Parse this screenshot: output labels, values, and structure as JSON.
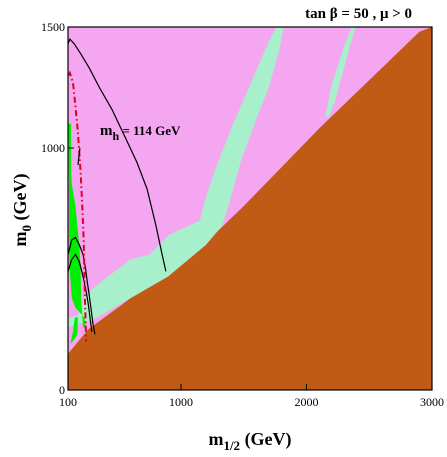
{
  "chart_data": {
    "type": "area",
    "title": "tan β = 50 ,  μ > 0",
    "xlabel_main": "m",
    "xlabel_sub": "1/2",
    "xlabel_unit": " (GeV)",
    "ylabel_main": "m",
    "ylabel_sub": "0",
    "ylabel_unit": " (GeV)",
    "xlim": [
      100,
      3000
    ],
    "ylim": [
      0,
      1500
    ],
    "xticks": [
      100,
      1000,
      2000,
      3000
    ],
    "yticks": [
      0,
      1000,
      1500
    ],
    "annotation": {
      "main": "m",
      "sub": "h",
      "rest": " = 114 GeV"
    },
    "grid": false,
    "regions": [
      {
        "color": "#f4a6f0",
        "points": [
          [
            100,
            0
          ],
          [
            3000,
            0
          ],
          [
            3000,
            1500
          ],
          [
            100,
            1500
          ]
        ]
      },
      {
        "color": "#c15a14",
        "points": [
          [
            100,
            150
          ],
          [
            260,
            250
          ],
          [
            600,
            380
          ],
          [
            900,
            470
          ],
          [
            1200,
            610
          ],
          [
            1500,
            760
          ],
          [
            1800,
            920
          ],
          [
            2100,
            1080
          ],
          [
            2400,
            1230
          ],
          [
            2700,
            1380
          ],
          [
            2900,
            1480
          ],
          [
            3000,
            1500
          ],
          [
            3000,
            0
          ],
          [
            100,
            0
          ]
        ]
      },
      {
        "color": "#a8f0cc",
        "points": [
          [
            110,
            300
          ],
          [
            135,
            300
          ],
          [
            180,
            310
          ],
          [
            230,
            380
          ],
          [
            300,
            420
          ],
          [
            420,
            470
          ],
          [
            500,
            500
          ],
          [
            600,
            540
          ],
          [
            750,
            560
          ],
          [
            900,
            640
          ],
          [
            1150,
            700
          ],
          [
            1200,
            800
          ],
          [
            1280,
            920
          ],
          [
            1400,
            1080
          ],
          [
            1500,
            1200
          ],
          [
            1600,
            1320
          ],
          [
            1700,
            1440
          ],
          [
            1760,
            1500
          ],
          [
            1820,
            1500
          ],
          [
            1780,
            1400
          ],
          [
            1700,
            1250
          ],
          [
            1600,
            1120
          ],
          [
            1480,
            950
          ],
          [
            1400,
            800
          ],
          [
            1330,
            680
          ],
          [
            1200,
            600
          ],
          [
            900,
            470
          ],
          [
            600,
            380
          ],
          [
            300,
            290
          ],
          [
            150,
            270
          ],
          [
            100,
            260
          ],
          [
            100,
            290
          ]
        ]
      },
      {
        "color": "#a8f0cc",
        "points": [
          [
            2150,
            1130
          ],
          [
            2200,
            1260
          ],
          [
            2300,
            1420
          ],
          [
            2360,
            1500
          ],
          [
            2390,
            1500
          ],
          [
            2330,
            1390
          ],
          [
            2230,
            1200
          ],
          [
            2180,
            1130
          ]
        ]
      },
      {
        "color": "#00ee00",
        "points": [
          [
            103,
            1100
          ],
          [
            125,
            1100
          ],
          [
            126,
            900
          ],
          [
            130,
            850
          ],
          [
            160,
            760
          ],
          [
            180,
            650
          ],
          [
            190,
            600
          ],
          [
            200,
            500
          ],
          [
            205,
            370
          ],
          [
            220,
            260
          ],
          [
            245,
            255
          ],
          [
            230,
            300
          ],
          [
            160,
            340
          ],
          [
            130,
            380
          ],
          [
            110,
            520
          ],
          [
            108,
            800
          ],
          [
            105,
            1000
          ]
        ]
      },
      {
        "color": "#00ee00",
        "points": [
          [
            120,
            190
          ],
          [
            150,
            210
          ],
          [
            175,
            230
          ],
          [
            178,
            300
          ],
          [
            155,
            300
          ],
          [
            140,
            240
          ],
          [
            125,
            205
          ]
        ]
      }
    ],
    "contours": [
      {
        "color": "#000000",
        "dash": "",
        "points": [
          [
            100,
            1430
          ],
          [
            115,
            1450
          ],
          [
            150,
            1430
          ],
          [
            200,
            1390
          ],
          [
            270,
            1330
          ],
          [
            350,
            1250
          ],
          [
            450,
            1160
          ],
          [
            550,
            1050
          ],
          [
            650,
            940
          ],
          [
            730,
            830
          ],
          [
            800,
            680
          ],
          [
            850,
            560
          ],
          [
            880,
            490
          ]
        ]
      },
      {
        "color": "#000000",
        "dash": "",
        "points": [
          [
            100,
            560
          ],
          [
            130,
            620
          ],
          [
            160,
            630
          ],
          [
            190,
            600
          ],
          [
            220,
            560
          ],
          [
            240,
            500
          ],
          [
            255,
            440
          ],
          [
            270,
            390
          ],
          [
            285,
            330
          ],
          [
            300,
            270
          ],
          [
            315,
            230
          ]
        ]
      },
      {
        "color": "#000000",
        "dash": "",
        "points": [
          [
            100,
            490
          ],
          [
            130,
            540
          ],
          [
            160,
            560
          ],
          [
            190,
            530
          ],
          [
            215,
            480
          ],
          [
            240,
            420
          ],
          [
            260,
            360
          ],
          [
            275,
            300
          ],
          [
            290,
            240
          ]
        ]
      },
      {
        "color": "#e00020",
        "dash": "6,3,1.5,3",
        "points": [
          [
            105,
            1300
          ],
          [
            115,
            1310
          ],
          [
            140,
            1270
          ],
          [
            160,
            1170
          ],
          [
            180,
            1060
          ],
          [
            200,
            900
          ],
          [
            215,
            750
          ],
          [
            225,
            620
          ],
          [
            230,
            500
          ],
          [
            235,
            380
          ],
          [
            240,
            280
          ],
          [
            245,
            200
          ]
        ]
      },
      {
        "color": "#000000",
        "dash": "",
        "points": [
          [
            195,
            1000
          ],
          [
            180,
            930
          ]
        ]
      }
    ]
  }
}
